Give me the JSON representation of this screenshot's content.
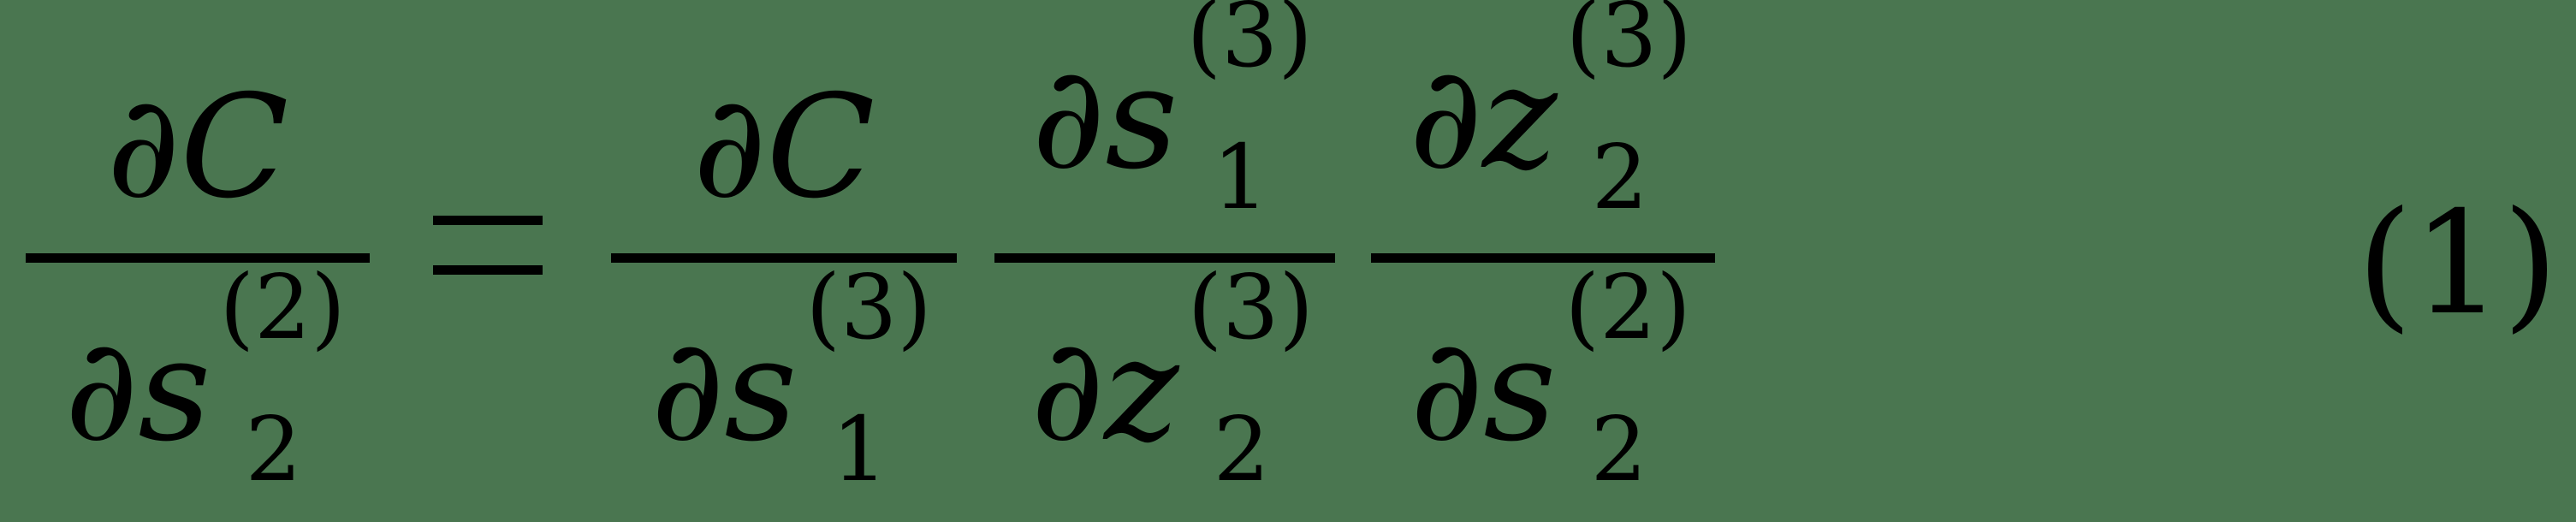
{
  "equation": {
    "lhs": {
      "num": {
        "text": "∂C"
      },
      "den": {
        "base": "∂s",
        "sup": "(2)",
        "sub": "2"
      }
    },
    "equals": "=",
    "rhs": [
      {
        "num": {
          "text": "∂C"
        },
        "den": {
          "base": "∂s",
          "sup": "(3)",
          "sub": "1"
        }
      },
      {
        "num": {
          "base": "∂s",
          "sup": "(3)",
          "sub": "1"
        },
        "den": {
          "base": "∂z",
          "sup": "(3)",
          "sub": "2"
        }
      },
      {
        "num": {
          "base": "∂z",
          "sup": "(3)",
          "sub": "2"
        },
        "den": {
          "base": "∂s",
          "sup": "(2)",
          "sub": "2"
        }
      }
    ],
    "number": "(1)"
  }
}
